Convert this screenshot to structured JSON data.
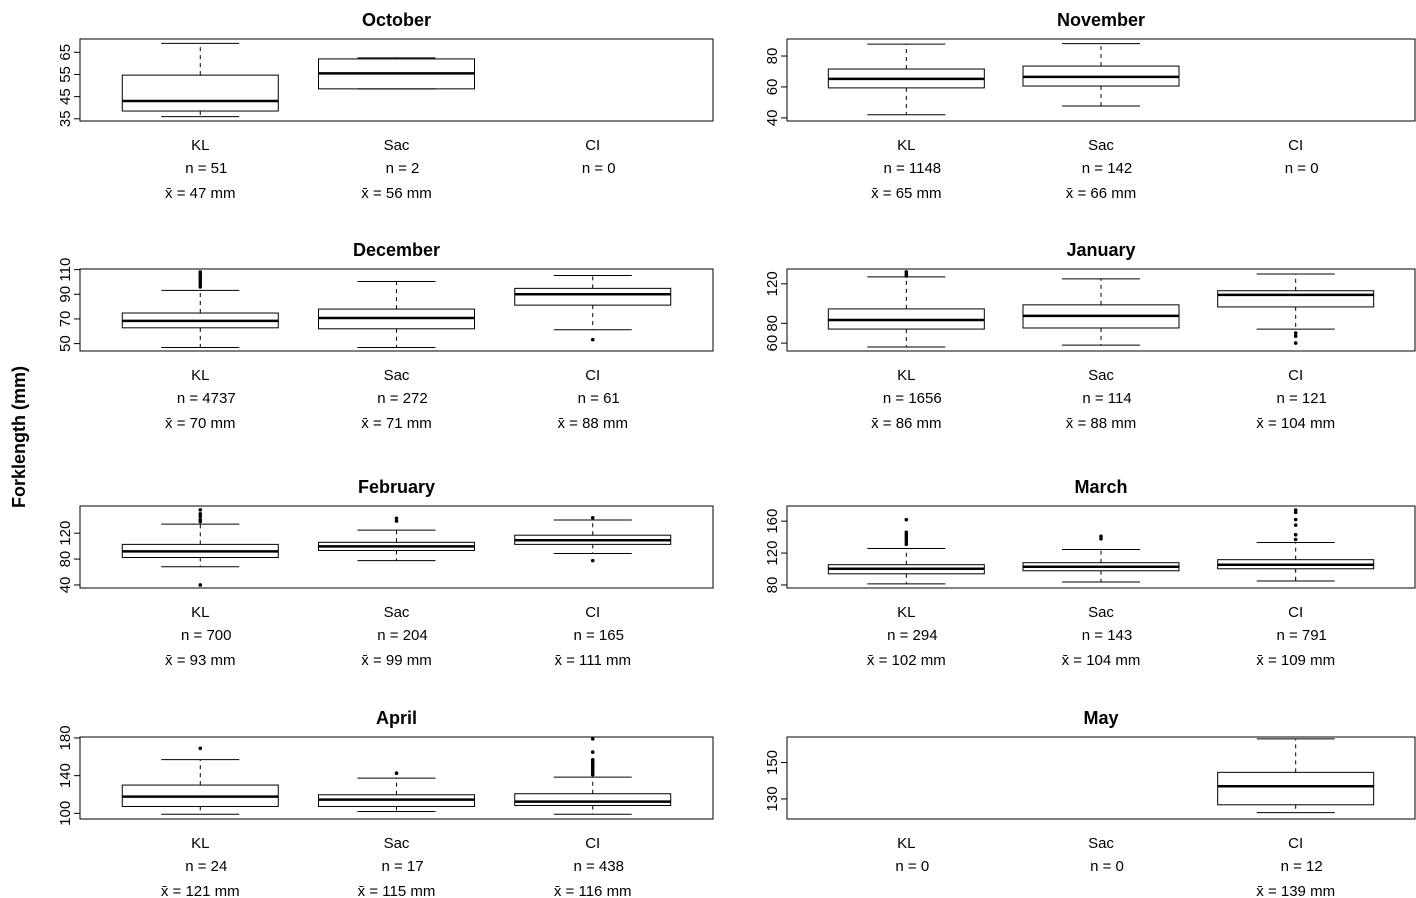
{
  "ylabel": "Forklength (mm)",
  "chart_data": [
    {
      "type": "box",
      "title": "October",
      "categories": [
        "KL",
        "Sac",
        "CI"
      ],
      "ylim": [
        34,
        71
      ],
      "yticks": [
        35,
        45,
        55,
        65
      ],
      "n_labels": [
        "n = 51",
        "n = 2",
        "n = 0"
      ],
      "mean_labels": [
        "x̄ = 47 mm",
        "x̄ = 56 mm",
        null
      ],
      "boxes": [
        {
          "whislo": 36,
          "q1": 38.5,
          "med": 43,
          "q3": 54.7,
          "whishi": 69,
          "fliers": []
        },
        {
          "whislo": 48.5,
          "q1": 48.5,
          "med": 55.5,
          "q3": 62,
          "whishi": 62.5,
          "fliers": []
        },
        null
      ]
    },
    {
      "type": "box",
      "title": "November",
      "categories": [
        "KL",
        "Sac",
        "CI"
      ],
      "ylim": [
        38,
        91
      ],
      "yticks": [
        40,
        60,
        80
      ],
      "n_labels": [
        "n = 1148",
        "n = 142",
        "n = 0"
      ],
      "mean_labels": [
        "x̄ = 65 mm",
        "x̄ = 66 mm",
        null
      ],
      "boxes": [
        {
          "whislo": 42,
          "q1": 59.4,
          "med": 65.2,
          "q3": 71.6,
          "whishi": 87.7,
          "fliers": []
        },
        {
          "whislo": 47.7,
          "q1": 60.6,
          "med": 66.5,
          "q3": 73.5,
          "whishi": 88,
          "fliers": []
        },
        null
      ]
    },
    {
      "type": "box",
      "title": "December",
      "categories": [
        "KL",
        "Sac",
        "CI"
      ],
      "ylim": [
        44,
        110.5
      ],
      "yticks": [
        50,
        70,
        90,
        110
      ],
      "n_labels": [
        "n = 4737",
        "n = 272",
        "n = 61"
      ],
      "mean_labels": [
        "x̄ = 70 mm",
        "x̄ = 71 mm",
        "x̄ = 88 mm"
      ],
      "boxes": [
        {
          "whislo": 46.8,
          "q1": 62.8,
          "med": 68.4,
          "q3": 74.8,
          "whishi": 93.2,
          "fliers": [
            96,
            98,
            100,
            102,
            104,
            106,
            108
          ]
        },
        {
          "whislo": 46.8,
          "q1": 62,
          "med": 70.8,
          "q3": 78,
          "whishi": 100.4,
          "fliers": []
        },
        {
          "whislo": 61.2,
          "q1": 81.2,
          "med": 90,
          "q3": 94.8,
          "whishi": 105.2,
          "fliers": [
            53.2
          ]
        }
      ]
    },
    {
      "type": "box",
      "title": "January",
      "categories": [
        "KL",
        "Sac",
        "CI"
      ],
      "ylim": [
        52,
        135
      ],
      "yticks": [
        60,
        80,
        120
      ],
      "n_labels": [
        "n = 1656",
        "n = 114",
        "n = 121"
      ],
      "mean_labels": [
        "x̄ = 86 mm",
        "x̄ = 88 mm",
        "x̄ = 104 mm"
      ],
      "boxes": [
        {
          "whislo": 56,
          "q1": 74.2,
          "med": 83.4,
          "q3": 94.6,
          "whishi": 127,
          "fliers": [
            128,
            130,
            132
          ]
        },
        {
          "whislo": 58,
          "q1": 75.3,
          "med": 87.5,
          "q3": 98.7,
          "whishi": 125,
          "fliers": []
        },
        {
          "whislo": 74.2,
          "q1": 96.6,
          "med": 108.8,
          "q3": 113,
          "whishi": 130,
          "fliers": [
            70.2,
            67.1,
            60
          ]
        }
      ]
    },
    {
      "type": "box",
      "title": "February",
      "categories": [
        "KL",
        "Sac",
        "CI"
      ],
      "ylim": [
        35.3,
        162
      ],
      "yticks": [
        40,
        80,
        120
      ],
      "n_labels": [
        "n = 700",
        "n = 204",
        "n = 165"
      ],
      "mean_labels": [
        "x̄ = 93 mm",
        "x̄ = 99 mm",
        "x̄ = 111 mm"
      ],
      "boxes": [
        {
          "whislo": 68.2,
          "q1": 82.4,
          "med": 91.8,
          "q3": 102.7,
          "whishi": 134,
          "fliers": [
            138,
            141,
            146,
            150,
            156,
            40
          ]
        },
        {
          "whislo": 77.6,
          "q1": 93.3,
          "med": 99.6,
          "q3": 105.9,
          "whishi": 124.7,
          "fliers": [
            143,
            138.8
          ]
        },
        {
          "whislo": 88.6,
          "q1": 102.7,
          "med": 109,
          "q3": 116.9,
          "whishi": 140.4,
          "fliers": [
            143.8,
            77.6
          ]
        }
      ]
    },
    {
      "type": "box",
      "title": "March",
      "categories": [
        "KL",
        "Sac",
        "CI"
      ],
      "ylim": [
        76.2,
        179
      ],
      "yticks": [
        80,
        120,
        160
      ],
      "n_labels": [
        "n = 294",
        "n = 143",
        "n = 791"
      ],
      "mean_labels": [
        "x̄ = 102 mm",
        "x̄ = 104 mm",
        "x̄ = 109 mm"
      ],
      "boxes": [
        {
          "whislo": 81.3,
          "q1": 94,
          "med": 100.3,
          "q3": 105.4,
          "whishi": 125.7,
          "fliers": [
            161.9,
            146,
            143,
            140,
            137,
            134,
            131
          ]
        },
        {
          "whislo": 83.8,
          "q1": 97.8,
          "med": 102.9,
          "q3": 107.9,
          "whishi": 124.4,
          "fliers": [
            138,
            141
          ]
        },
        {
          "whislo": 85,
          "q1": 100.3,
          "med": 105.4,
          "q3": 111.7,
          "whishi": 133.3,
          "fliers": [
            174,
            171,
            162,
            155,
            143,
            137
          ]
        }
      ]
    },
    {
      "type": "box",
      "title": "April",
      "categories": [
        "KL",
        "Sac",
        "CI"
      ],
      "ylim": [
        94,
        181
      ],
      "yticks": [
        100,
        140,
        180
      ],
      "n_labels": [
        "n = 24",
        "n = 17",
        "n = 438"
      ],
      "mean_labels": [
        "x̄ = 121 mm",
        "x̄ = 115 mm",
        "x̄ = 116 mm"
      ],
      "boxes": [
        {
          "whislo": 99,
          "q1": 107.3,
          "med": 117.7,
          "q3": 130,
          "whishi": 157,
          "fliers": [
            169
          ]
        },
        {
          "whislo": 102,
          "q1": 107.3,
          "med": 114.5,
          "q3": 119.7,
          "whishi": 137.4,
          "fliers": [
            142.6
          ]
        },
        {
          "whislo": 99,
          "q1": 108.3,
          "med": 112.5,
          "q3": 120.8,
          "whishi": 138.4,
          "fliers": [
            179,
            165,
            157,
            155,
            153,
            151,
            149,
            147,
            145,
            143,
            141
          ]
        }
      ]
    },
    {
      "type": "box",
      "title": "May",
      "categories": [
        "KL",
        "Sac",
        "CI"
      ],
      "ylim": [
        119,
        164
      ],
      "yticks": [
        130,
        150
      ],
      "n_labels": [
        "n = 0",
        "n = 0",
        "n = 12"
      ],
      "mean_labels": [
        null,
        null,
        "x̄ = 139 mm"
      ],
      "boxes": [
        null,
        null,
        {
          "whislo": 122.5,
          "q1": 126.8,
          "med": 137,
          "q3": 144.6,
          "whishi": 163,
          "fliers": []
        }
      ]
    }
  ]
}
